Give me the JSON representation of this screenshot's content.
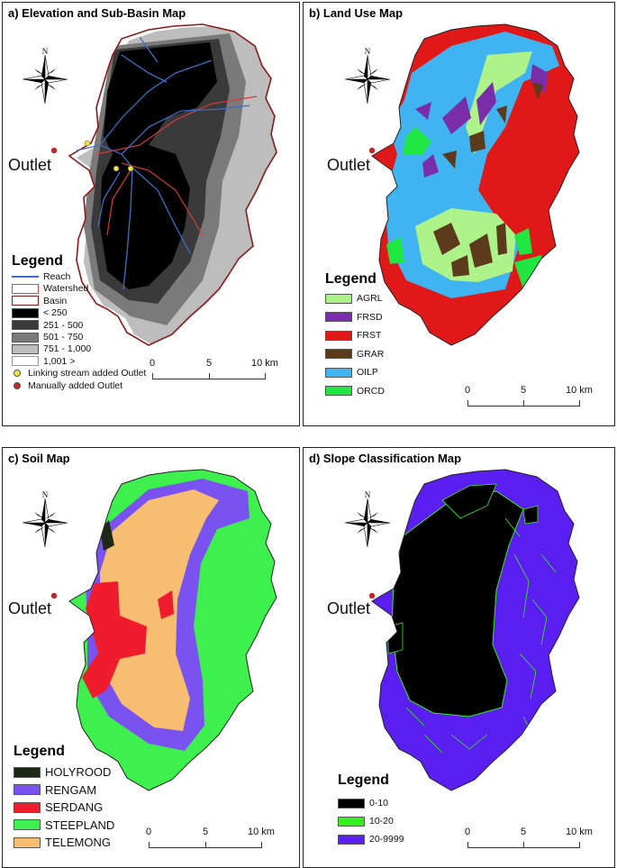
{
  "panels": {
    "a": {
      "title": "a) Elevation and Sub-Basin Map",
      "outlet_label": "Outlet",
      "legend_title": "Legend",
      "legend": [
        {
          "label": "Reach",
          "kind": "line",
          "color": "#3b6fc4"
        },
        {
          "label": "Watershed",
          "kind": "box",
          "color": "#ffffff",
          "border": "#e04848"
        },
        {
          "label": "Basin",
          "kind": "box",
          "color": "#ffffff",
          "border": "#8b1a1a"
        },
        {
          "label": "< 250",
          "kind": "box",
          "color": "#000000"
        },
        {
          "label": "251 - 500",
          "kind": "box",
          "color": "#3a3a3a"
        },
        {
          "label": "501 - 750",
          "kind": "box",
          "color": "#7a7a7a"
        },
        {
          "label": "751 - 1,000",
          "kind": "box",
          "color": "#bdbdbd"
        },
        {
          "label": "1,001 >",
          "kind": "box",
          "color": "#ffffff",
          "border": "#999999"
        },
        {
          "label": "Linking stream added Outlet",
          "kind": "dot",
          "color": "#f2e53a"
        },
        {
          "label": "Manually added Outlet",
          "kind": "dot",
          "color": "#c0252a"
        }
      ],
      "scale": [
        "0",
        "5",
        "10 km"
      ]
    },
    "b": {
      "title": "b) Land Use Map",
      "outlet_label": "Outlet",
      "legend_title": "Legend",
      "legend": [
        {
          "label": "AGRL",
          "color": "#aef28a"
        },
        {
          "label": "FRSD",
          "color": "#7a2da8"
        },
        {
          "label": "FRST",
          "color": "#e01818"
        },
        {
          "label": "GRAR",
          "color": "#5c3a1c"
        },
        {
          "label": "OILP",
          "color": "#40b4f0"
        },
        {
          "label": "ORCD",
          "color": "#1fe640"
        }
      ],
      "scale": [
        "0",
        "5",
        "10 km"
      ]
    },
    "c": {
      "title": "c) Soil Map",
      "outlet_label": "Outlet",
      "legend_title": "Legend",
      "legend": [
        {
          "label": "HOLYROOD",
          "color": "#1e2814"
        },
        {
          "label": "RENGAM",
          "color": "#7a52f0"
        },
        {
          "label": "SERDANG",
          "color": "#ee1c2c"
        },
        {
          "label": "STEEPLAND",
          "color": "#3ef04e"
        },
        {
          "label": "TELEMONG",
          "color": "#f7bd70"
        }
      ],
      "scale": [
        "0",
        "5",
        "10 km"
      ]
    },
    "d": {
      "title": "d) Slope Classification Map",
      "outlet_label": "Outlet",
      "legend_title": "Legend",
      "legend": [
        {
          "label": "0-10",
          "color": "#000000"
        },
        {
          "label": "10-20",
          "color": "#34f01c"
        },
        {
          "label": "20-9999",
          "color": "#5b1ef0"
        }
      ],
      "scale": [
        "0",
        "5",
        "10 km"
      ]
    }
  },
  "north_label": "N",
  "colors": {
    "outlet_dot": "#c0252a",
    "link_dot": "#f2e53a",
    "reach": "#3b6fc4",
    "subbasin_line": "#d63a3a"
  }
}
